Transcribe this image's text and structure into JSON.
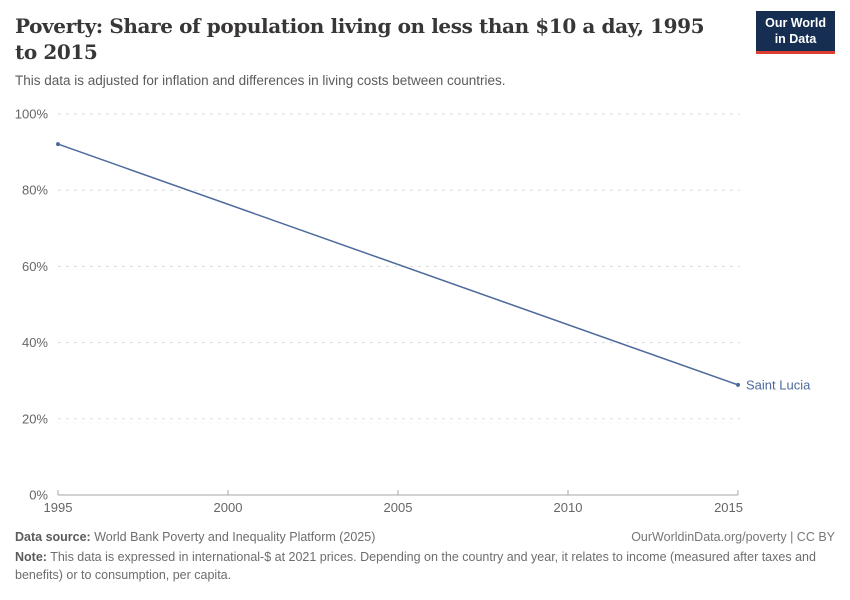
{
  "header": {
    "title": "Poverty: Share of population living on less than $10 a day, 1995 to 2015",
    "subtitle": "This data is adjusted for inflation and differences in living costs between countries.",
    "logo": {
      "line1": "Our World",
      "line2": "in Data",
      "bg_color": "#152e52",
      "accent_color": "#dc3e31"
    }
  },
  "chart_data": {
    "type": "line",
    "title": "Poverty: Share of population living on less than $10 a day, 1995 to 2015",
    "xlabel": "",
    "ylabel": "",
    "xlim": [
      1995,
      2015
    ],
    "ylim": [
      0,
      100
    ],
    "x_ticks": [
      1995,
      2000,
      2005,
      2010,
      2015
    ],
    "y_ticks": [
      0,
      20,
      40,
      60,
      80,
      100
    ],
    "y_tick_suffix": "%",
    "grid": "horizontal-dashed",
    "legend_position": "line-end-label",
    "series": [
      {
        "name": "Saint Lucia",
        "color": "#4c6a9c",
        "points": [
          [
            1995,
            92.1
          ],
          [
            2015,
            28.9
          ]
        ]
      }
    ]
  },
  "footer": {
    "datasource_label": "Data source:",
    "datasource_text": "World Bank Poverty and Inequality Platform (2025)",
    "rights": "OurWorldinData.org/poverty | CC BY",
    "note_label": "Note:",
    "note_text": "This data is expressed in international-$ at 2021 prices. Depending on the country and year, it relates to income (measured after taxes and benefits) or to consumption, per capita."
  }
}
